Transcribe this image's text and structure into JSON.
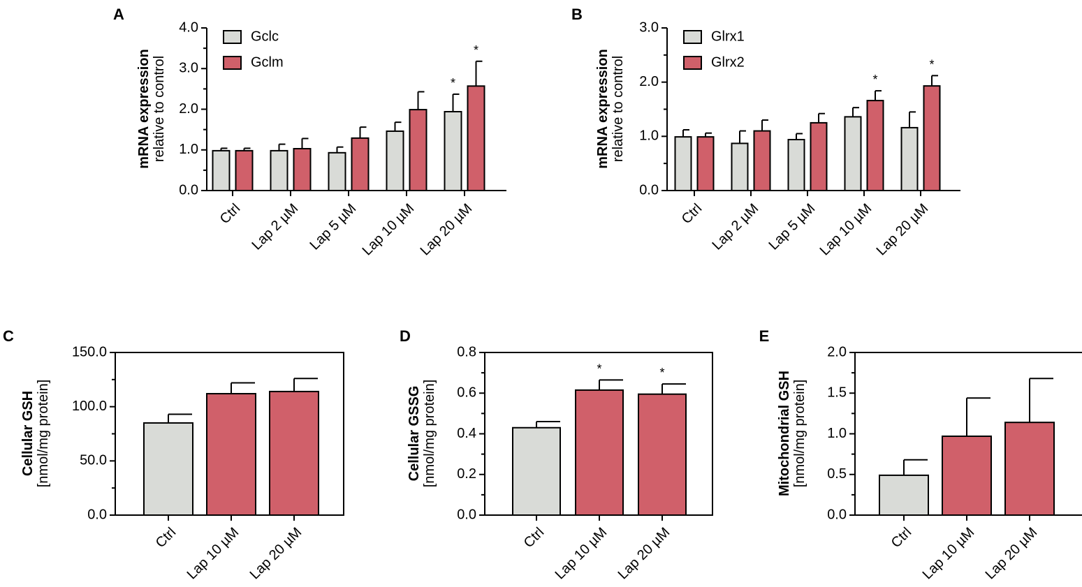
{
  "colors": {
    "control_fill": "#d9dbd7",
    "treated_fill": "#d0606a",
    "stroke": "#000000"
  },
  "chart_data": [
    {
      "panel": "A",
      "type": "bar",
      "title": "",
      "ylabel_main": "mRNA expression",
      "ylabel_sub": "relative to control",
      "xlabel": "",
      "categories": [
        "Ctrl",
        "Lap 2 µM",
        "Lap 5 µM",
        "Lap 10 µM",
        "Lap 20 µM"
      ],
      "series": [
        {
          "name": "Gclc",
          "color": "#d9dbd7",
          "values": [
            0.98,
            0.98,
            0.93,
            1.46,
            1.94
          ],
          "errors": [
            0.06,
            0.16,
            0.14,
            0.22,
            0.43
          ],
          "significant": [
            false,
            false,
            false,
            false,
            true
          ]
        },
        {
          "name": "Gclm",
          "color": "#d0606a",
          "values": [
            0.98,
            1.03,
            1.29,
            1.99,
            2.57
          ],
          "errors": [
            0.06,
            0.25,
            0.27,
            0.44,
            0.61
          ],
          "significant": [
            false,
            false,
            false,
            false,
            true
          ]
        }
      ],
      "ylim": [
        0,
        4
      ],
      "yticks": [
        0,
        1,
        2,
        3,
        4
      ],
      "ytick_labels": [
        "0.0",
        "1.0",
        "2.0",
        "3.0",
        "4.0"
      ],
      "minor_ticks": true,
      "legend": "top-left",
      "significance_marker": "*"
    },
    {
      "panel": "B",
      "type": "bar",
      "title": "",
      "ylabel_main": "mRNA expression",
      "ylabel_sub": "relative to control",
      "xlabel": "",
      "categories": [
        "Ctrl",
        "Lap 2 µM",
        "Lap 5 µM",
        "Lap 10 µM",
        "Lap 20 µM"
      ],
      "series": [
        {
          "name": "Glrx1",
          "color": "#d9dbd7",
          "values": [
            0.99,
            0.87,
            0.94,
            1.36,
            1.16
          ],
          "errors": [
            0.13,
            0.23,
            0.11,
            0.17,
            0.29
          ],
          "significant": [
            false,
            false,
            false,
            false,
            false
          ]
        },
        {
          "name": "Glrx2",
          "color": "#d0606a",
          "values": [
            0.99,
            1.1,
            1.25,
            1.66,
            1.93
          ],
          "errors": [
            0.07,
            0.2,
            0.17,
            0.18,
            0.19
          ],
          "significant": [
            false,
            false,
            false,
            true,
            true
          ]
        }
      ],
      "ylim": [
        0,
        3
      ],
      "yticks": [
        0,
        1,
        2,
        3
      ],
      "ytick_labels": [
        "0.0",
        "1.0",
        "2.0",
        "3.0"
      ],
      "minor_ticks": true,
      "legend": "top-left",
      "significance_marker": "*"
    },
    {
      "panel": "C",
      "type": "bar",
      "title": "",
      "ylabel_main": "Cellular GSH",
      "ylabel_sub": "[nmol/mg protein]",
      "xlabel": "",
      "categories": [
        "Ctrl",
        "Lap 10 µM",
        "Lap 20 µM"
      ],
      "series": [
        {
          "name": "Cellular GSH",
          "values": [
            85,
            112,
            114
          ],
          "errors": [
            8,
            10,
            12
          ],
          "significant": [
            false,
            false,
            false
          ]
        }
      ],
      "bar_colors": [
        "#d9dbd7",
        "#d0606a",
        "#d0606a"
      ],
      "ylim": [
        0,
        150
      ],
      "yticks": [
        0,
        50,
        100,
        150
      ],
      "ytick_labels": [
        "0.0",
        "50.0",
        "100.0",
        "150.0"
      ],
      "minor_ticks": true,
      "legend": "none",
      "significance_marker": "*"
    },
    {
      "panel": "D",
      "type": "bar",
      "title": "",
      "ylabel_main": "Cellular GSSG",
      "ylabel_sub": "[nmol/mg protein]",
      "xlabel": "",
      "categories": [
        "Ctrl",
        "Lap 10 µM",
        "Lap 20 µM"
      ],
      "series": [
        {
          "name": "Cellular GSSG",
          "values": [
            0.43,
            0.615,
            0.595
          ],
          "errors": [
            0.03,
            0.05,
            0.05
          ],
          "significant": [
            false,
            true,
            true
          ]
        }
      ],
      "bar_colors": [
        "#d9dbd7",
        "#d0606a",
        "#d0606a"
      ],
      "ylim": [
        0,
        0.8
      ],
      "yticks": [
        0,
        0.2,
        0.4,
        0.6,
        0.8
      ],
      "ytick_labels": [
        "0.0",
        "0.2",
        "0.4",
        "0.6",
        "0.8"
      ],
      "minor_ticks": true,
      "legend": "none",
      "significance_marker": "*"
    },
    {
      "panel": "E",
      "type": "bar",
      "title": "",
      "ylabel_main": "Mitochondrial GSH",
      "ylabel_sub": "[nmol/mg protein]",
      "xlabel": "",
      "categories": [
        "Ctrl",
        "Lap 10 µM",
        "Lap 20 µM"
      ],
      "series": [
        {
          "name": "Mitochondrial GSH",
          "values": [
            0.49,
            0.97,
            1.14
          ],
          "errors": [
            0.19,
            0.47,
            0.54
          ],
          "significant": [
            false,
            false,
            false
          ]
        }
      ],
      "bar_colors": [
        "#d9dbd7",
        "#d0606a",
        "#d0606a"
      ],
      "ylim": [
        0,
        2
      ],
      "yticks": [
        0,
        0.5,
        1,
        1.5,
        2
      ],
      "ytick_labels": [
        "0.0",
        "0.5",
        "1.0",
        "1.5",
        "2.0"
      ],
      "minor_ticks": true,
      "legend": "none",
      "significance_marker": "*"
    }
  ]
}
